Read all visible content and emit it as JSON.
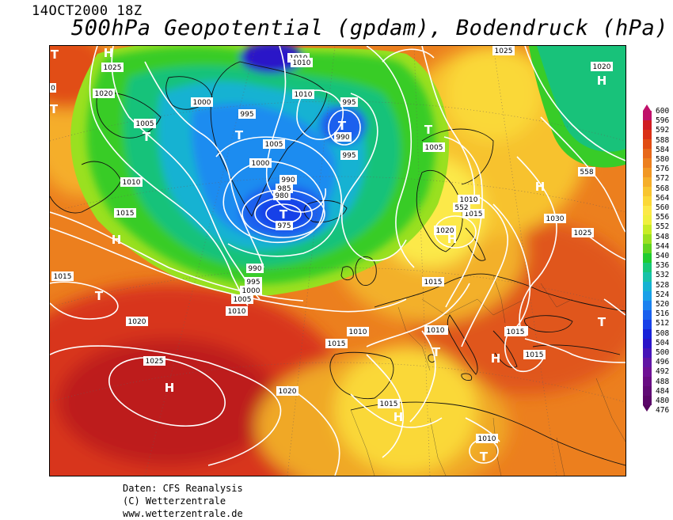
{
  "header": {
    "date": "14OCT2000 18Z",
    "title": "500hPa Geopotential (gpdam), Bodendruck (hPa)"
  },
  "legend": {
    "values": [
      "600",
      "596",
      "592",
      "588",
      "584",
      "580",
      "576",
      "572",
      "568",
      "564",
      "560",
      "556",
      "552",
      "548",
      "544",
      "540",
      "536",
      "532",
      "528",
      "524",
      "520",
      "516",
      "512",
      "508",
      "504",
      "500",
      "496",
      "492",
      "488",
      "484",
      "480",
      "476"
    ],
    "colors": [
      "#c0106a",
      "#d01c22",
      "#da3016",
      "#e14d14",
      "#e7681a",
      "#ec7f1e",
      "#f19724",
      "#f5ae2a",
      "#f8c530",
      "#fbd838",
      "#fce948",
      "#f0f03e",
      "#c8ec26",
      "#9ae020",
      "#60d420",
      "#20cc30",
      "#18c878",
      "#18c2a8",
      "#16b2d2",
      "#1aa0e8",
      "#1c82f0",
      "#1a60ee",
      "#1840e8",
      "#1822d8",
      "#2a14c8",
      "#4614b8",
      "#6014a4",
      "#6e1094",
      "#680c82",
      "#600a74",
      "#5a0668"
    ]
  },
  "map_labels": [
    {
      "type": "H",
      "text": "H"
    },
    {
      "type": "H",
      "text": "H"
    },
    {
      "type": "H",
      "text": "H"
    },
    {
      "type": "H",
      "text": "H"
    },
    {
      "type": "H",
      "text": "H"
    },
    {
      "type": "H",
      "text": "H"
    },
    {
      "type": "H",
      "text": "H"
    },
    {
      "type": "H",
      "text": "H"
    },
    {
      "type": "T",
      "text": "T"
    },
    {
      "type": "T",
      "text": "T"
    },
    {
      "type": "T",
      "text": "T"
    },
    {
      "type": "T",
      "text": "T"
    },
    {
      "type": "T",
      "text": "T"
    },
    {
      "type": "T",
      "text": "T"
    },
    {
      "type": "T",
      "text": "T"
    },
    {
      "type": "T",
      "text": "T"
    },
    {
      "type": "T",
      "text": "T"
    },
    {
      "type": "T",
      "text": "T"
    },
    {
      "type": "T",
      "text": "T"
    }
  ],
  "isobar_labels": [
    "1010",
    "1025",
    "1020",
    "1000",
    "995",
    "1010",
    "995",
    "990",
    "1005",
    "1005",
    "1005",
    "1000",
    "995",
    "990",
    "985",
    "980",
    "975",
    "1010",
    "1015",
    "990",
    "995",
    "1000",
    "1005",
    "1010",
    "1015",
    "1020",
    "1025",
    "1020",
    "1020",
    "1015",
    "1010",
    "1015",
    "1015",
    "1010",
    "1015",
    "1020",
    "1010",
    "1025",
    "1030",
    "1025",
    "1020",
    "1015",
    "1010",
    "1010",
    "1015",
    "1010",
    "0",
    "552",
    "558"
  ],
  "footer": {
    "line1": "Daten: CFS Reanalysis",
    "line2": "(C) Wetterzentrale",
    "line3": "www.wetterzentrale.de"
  }
}
